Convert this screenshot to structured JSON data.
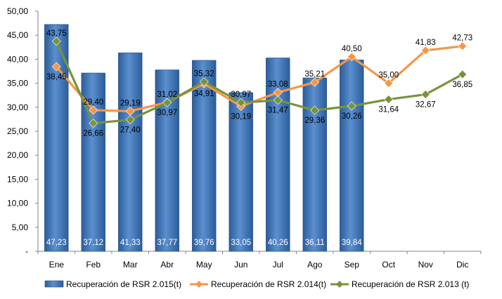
{
  "chart_data": {
    "type": "bar",
    "categories": [
      "Ene",
      "Feb",
      "Mar",
      "Abr",
      "May",
      "Jun",
      "Jul",
      "Ago",
      "Sep",
      "Oct",
      "Nov",
      "Dic"
    ],
    "y_ticks": [
      "-",
      "5,00",
      "10,00",
      "15,00",
      "20,00",
      "25,00",
      "30,00",
      "35,00",
      "40,00",
      "45,00",
      "50,00"
    ],
    "ylim": [
      0,
      50
    ],
    "grid": false,
    "legend_position": "bottom",
    "series": [
      {
        "name": "Recuperación de RSR 2.015(t)",
        "kind": "bar",
        "color": "#4F81BD",
        "values": [
          47.23,
          37.12,
          41.33,
          37.77,
          39.76,
          33.05,
          40.26,
          36.11,
          39.84,
          null,
          null,
          null
        ],
        "labels": [
          "47,23",
          "37,12",
          "41,33",
          "37,77",
          "39,76",
          "33,05",
          "40,26",
          "36,11",
          "39,84",
          "",
          "",
          ""
        ]
      },
      {
        "name": "Recuperación de RSR 2.014(t)",
        "kind": "line",
        "color": "#F79646",
        "values": [
          38.45,
          29.4,
          29.19,
          31.02,
          34.91,
          30.19,
          33.08,
          35.21,
          40.5,
          35.0,
          41.83,
          42.73
        ],
        "labels": [
          "38,45",
          "29,40",
          "29,19",
          "31,02",
          "34,91",
          "30,19",
          "33,08",
          "35,21",
          "40,50",
          "35,00",
          "41,83",
          "42,73"
        ]
      },
      {
        "name": "Recuperación de RSR 2.013 (t)",
        "kind": "line",
        "color": "#77933C",
        "values": [
          43.75,
          26.66,
          27.4,
          30.97,
          35.32,
          30.97,
          31.47,
          29.36,
          30.26,
          31.64,
          32.67,
          36.85
        ],
        "labels": [
          "43,75",
          "26,66",
          "27,40",
          "30,97",
          "35,32",
          "30,97",
          "31,47",
          "29,36",
          "30,26",
          "31,64",
          "32,67",
          "36,85"
        ]
      }
    ]
  }
}
